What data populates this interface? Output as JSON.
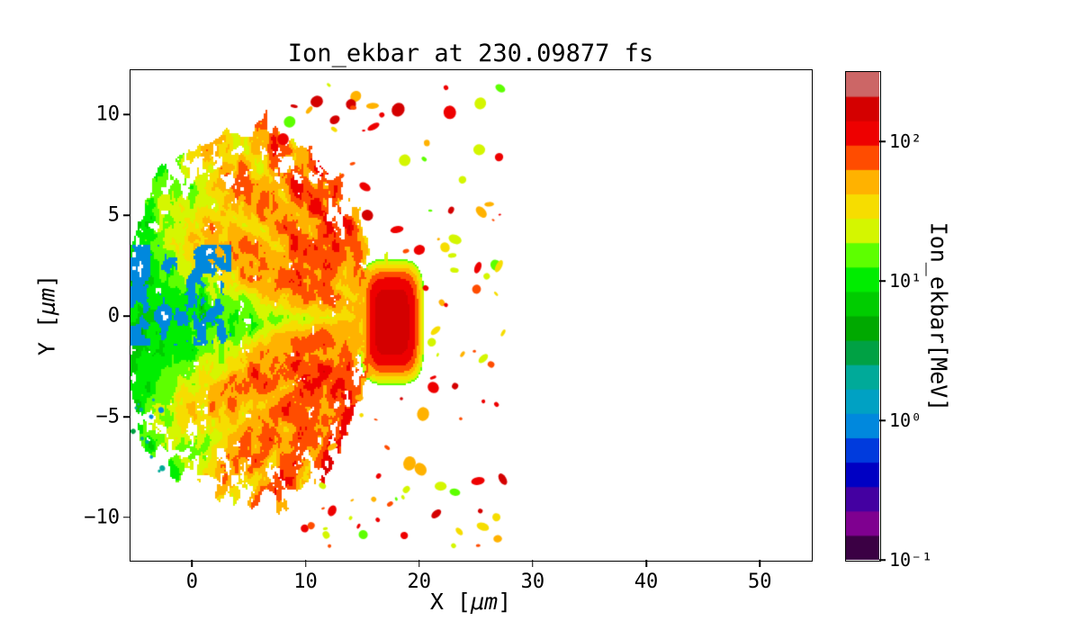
{
  "figure": {
    "background": "#ffffff"
  },
  "chart_data": {
    "type": "heatmap",
    "title": "Ion_ekbar at 230.09877 fs",
    "time_fs": 230.09877,
    "xlabel": {
      "prefix": "X [",
      "italic": "μm",
      "suffix": "]"
    },
    "ylabel": {
      "prefix": "Y [",
      "italic": "μm",
      "suffix": "]"
    },
    "xlim": [
      -5.42,
      54.5
    ],
    "ylim": [
      -12.1,
      12.2
    ],
    "x_ticks": {
      "values": [
        0,
        10,
        20,
        30,
        40,
        50
      ],
      "labels": [
        "0",
        "10",
        "20",
        "30",
        "40",
        "50"
      ]
    },
    "y_ticks": {
      "values": [
        10,
        5,
        0,
        -5,
        -10
      ],
      "labels": [
        "10",
        "5",
        "0",
        "−5",
        "−10"
      ]
    },
    "grid": false,
    "legend": "none",
    "colorbar": {
      "label": "Ion_ekbar[MeV]",
      "scale": "log10",
      "range_log10": [
        -1,
        2.5
      ],
      "ticks": {
        "values": [
          0.1,
          1,
          10,
          100
        ],
        "labels": [
          "10⁻¹",
          "10⁰",
          "10¹",
          "10²"
        ]
      },
      "bands": 20,
      "colormap_name": "nipy_spectral",
      "colormap_stops": [
        [
          0.0,
          [
            0,
            0,
            0
          ]
        ],
        [
          0.05,
          [
            119,
            0,
            136
          ]
        ],
        [
          0.1,
          [
            136,
            0,
            153
          ]
        ],
        [
          0.15,
          [
            0,
            0,
            170
          ]
        ],
        [
          0.2,
          [
            0,
            0,
            221
          ]
        ],
        [
          0.25,
          [
            0,
            119,
            221
          ]
        ],
        [
          0.3,
          [
            0,
            153,
            221
          ]
        ],
        [
          0.35,
          [
            0,
            170,
            170
          ]
        ],
        [
          0.4,
          [
            0,
            170,
            136
          ]
        ],
        [
          0.45,
          [
            0,
            153,
            0
          ]
        ],
        [
          0.5,
          [
            0,
            187,
            0
          ]
        ],
        [
          0.55,
          [
            0,
            221,
            0
          ]
        ],
        [
          0.6,
          [
            0,
            255,
            0
          ]
        ],
        [
          0.65,
          [
            187,
            255,
            0
          ]
        ],
        [
          0.7,
          [
            238,
            238,
            0
          ]
        ],
        [
          0.75,
          [
            255,
            204,
            0
          ]
        ],
        [
          0.8,
          [
            255,
            153,
            0
          ]
        ],
        [
          0.85,
          [
            255,
            0,
            0
          ]
        ],
        [
          0.9,
          [
            221,
            0,
            0
          ]
        ],
        [
          0.95,
          [
            204,
            0,
            0
          ]
        ],
        [
          1.0,
          [
            204,
            204,
            204
          ]
        ]
      ]
    },
    "field": {
      "description": "Expanding ion cloud: green bulk plasma (-5<x<16 um) with yellow/orange filament fan, low-energy blue pockets near the left edge, a dense red high-energy ion front at x≈16-20 um |y|<2.5 um (~100-250 MeV), and scattered high-energy debris speckles beyond x>16 and above/below the bulk.",
      "seed": 7,
      "display_threshold_mev": 0.5,
      "body": {
        "envelope": [
          [
            -5.4,
            4.2
          ],
          [
            -4.5,
            5.5
          ],
          [
            -3,
            7.0
          ],
          [
            -1,
            8.0
          ],
          [
            1,
            8.6
          ],
          [
            3,
            9.2
          ],
          [
            5,
            9.5
          ],
          [
            7,
            9.3
          ],
          [
            9,
            8.8
          ],
          [
            11,
            7.8
          ],
          [
            13,
            6.4
          ],
          [
            14.5,
            4.8
          ],
          [
            15.5,
            3.6
          ],
          [
            16.5,
            2.8
          ]
        ],
        "base_energy_mev": 6,
        "edge_noise_um": 1.6,
        "energy_gradient_per_um": 0.022
      },
      "core": {
        "x": 17.6,
        "y": -0.3,
        "rx": 2.3,
        "ry": 2.5,
        "peak_mev": 170,
        "halo_cut_mev": 15
      },
      "filaments": {
        "apex_x": 16.5,
        "angles_deg": [
          -58,
          -44,
          -30,
          -16,
          14,
          28,
          42,
          56
        ],
        "width_um": 1.1,
        "boost_mev": 40
      },
      "low_energy_patches": {
        "x_range": [
          -5.5,
          3.5
        ],
        "y_range": [
          -1.5,
          3.5
        ],
        "energy_mev": 0.9
      },
      "speckles": {
        "count": 110,
        "x_range": [
          8,
          27.5
        ],
        "y_range": [
          -11.5,
          11.5
        ],
        "energy_log10_range": [
          1.2,
          2.3
        ],
        "size_um": [
          0.25,
          1.2
        ]
      },
      "left_debris": {
        "count": 12,
        "x_range": [
          -5.4,
          -2.5
        ],
        "y_range": [
          -8,
          -3.5
        ],
        "energy_mev": 1.5,
        "size_um": [
          0.2,
          0.5
        ]
      }
    }
  }
}
